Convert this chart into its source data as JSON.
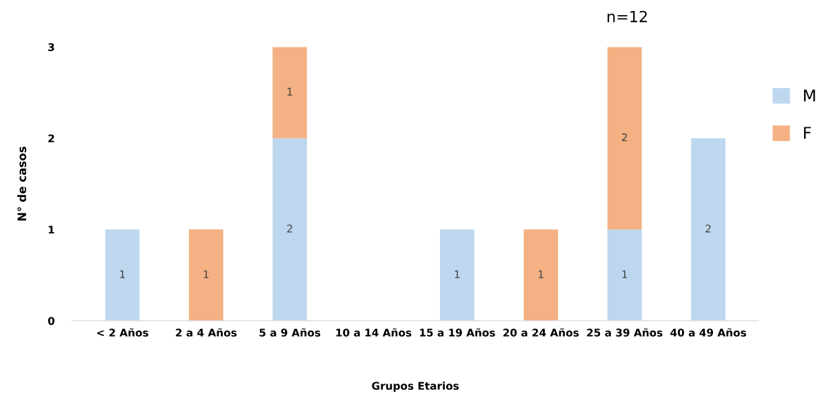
{
  "chart_data": {
    "type": "bar",
    "stacked": true,
    "title": "n=12",
    "xlabel": "Grupos Etarios",
    "ylabel": "N° de casos",
    "categories": [
      "< 2 Años",
      "2 a 4 Años",
      "5 a 9 Años",
      "10 a 14 Años",
      "15 a 19 Años",
      "20 a 24 Años",
      "25 a 39 Años",
      "40 a 49 Años"
    ],
    "series": [
      {
        "name": "M",
        "color": "#bdd7ee",
        "values": [
          1,
          null,
          2,
          null,
          1,
          null,
          1,
          2
        ]
      },
      {
        "name": "F",
        "color": "#f4b183",
        "values": [
          null,
          1,
          1,
          null,
          null,
          1,
          2,
          null
        ]
      }
    ],
    "ylim": [
      0,
      3
    ],
    "yticks": [
      0,
      1,
      2,
      3
    ],
    "data_labels": true,
    "legend": "right",
    "grid": false
  }
}
